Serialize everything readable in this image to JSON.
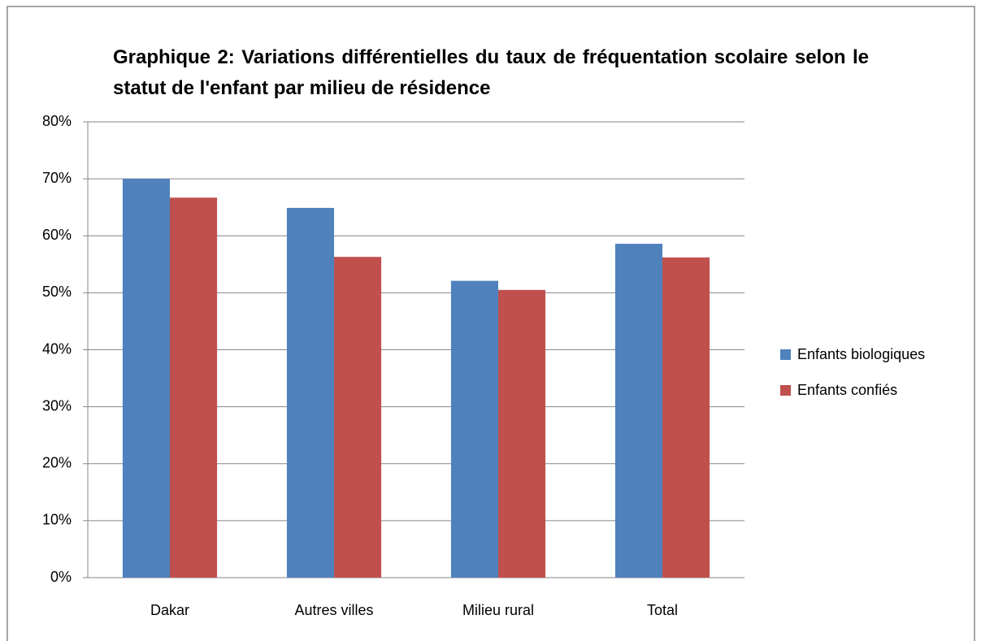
{
  "chart_data": {
    "type": "bar",
    "title": "Graphique 2: Variations différentielles du taux de fréquentation scolaire selon le statut de l'enfant par milieu de résidence",
    "categories": [
      "Dakar",
      "Autres villes",
      "Milieu rural",
      "Total"
    ],
    "series": [
      {
        "name": "Enfants biologiques",
        "color": "#4f81bd",
        "values": [
          70,
          64.9,
          52.1,
          58.6
        ]
      },
      {
        "name": "Enfants confiés",
        "color": "#c0504d",
        "values": [
          66.7,
          56.3,
          50.5,
          56.2
        ]
      }
    ],
    "ylim": [
      0,
      80
    ],
    "yticks": [
      {
        "value": 0,
        "label": "0%"
      },
      {
        "value": 10,
        "label": "10%"
      },
      {
        "value": 20,
        "label": "20%"
      },
      {
        "value": 30,
        "label": "30%"
      },
      {
        "value": 40,
        "label": "40%"
      },
      {
        "value": 50,
        "label": "50%"
      },
      {
        "value": 60,
        "label": "60%"
      },
      {
        "value": 70,
        "label": "70%"
      },
      {
        "value": 80,
        "label": "80%"
      }
    ],
    "grid": true,
    "legend": "right"
  }
}
